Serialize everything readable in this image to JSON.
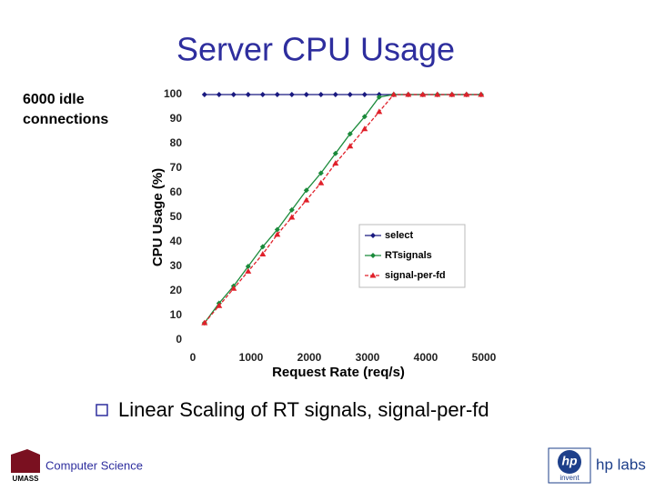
{
  "slide": {
    "title": "Server CPU Usage",
    "note_lines": [
      "6000 idle",
      "connections"
    ],
    "bullet": "Linear Scaling of RT signals, signal-per-fd",
    "footer_left": "Computer Science",
    "footer_logo_left": "UMASS",
    "footer_logo_right": "hp",
    "footer_logo_right_sub": "invent",
    "footer_right": "hp labs"
  },
  "chart_data": {
    "type": "line",
    "xlabel": "Request Rate (req/s)",
    "ylabel": "CPU Usage (%)",
    "x": [
      200,
      450,
      700,
      950,
      1200,
      1450,
      1700,
      1950,
      2200,
      2450,
      2700,
      2950,
      3200,
      3450,
      3700,
      3950,
      4200,
      4450,
      4700,
      4950
    ],
    "series": [
      {
        "name": "select",
        "color": "#1a1a80",
        "marker": "diamond",
        "values": [
          100,
          100,
          100,
          100,
          100,
          100,
          100,
          100,
          100,
          100,
          100,
          100,
          100,
          100,
          100,
          100,
          100,
          100,
          100,
          100
        ]
      },
      {
        "name": "RTsignals",
        "color": "#1a8a3a",
        "marker": "diamond",
        "values": [
          7,
          15,
          22,
          30,
          38,
          45,
          53,
          61,
          68,
          76,
          84,
          91,
          99,
          100,
          100,
          100,
          100,
          100,
          100,
          100
        ]
      },
      {
        "name": "signal-per-fd",
        "color": "#e0202a",
        "marker": "triangle",
        "dashed": true,
        "values": [
          7,
          14,
          21,
          28,
          35,
          43,
          50,
          57,
          64,
          72,
          79,
          86,
          93,
          100,
          100,
          100,
          100,
          100,
          100,
          100
        ]
      }
    ],
    "xlim": [
      0,
      5000
    ],
    "xticks": [
      0,
      1000,
      2000,
      3000,
      4000,
      5000
    ],
    "ylim": [
      0,
      100
    ],
    "yticks": [
      0,
      10,
      20,
      30,
      40,
      50,
      60,
      70,
      80,
      90,
      100
    ],
    "legend": "lower right"
  }
}
